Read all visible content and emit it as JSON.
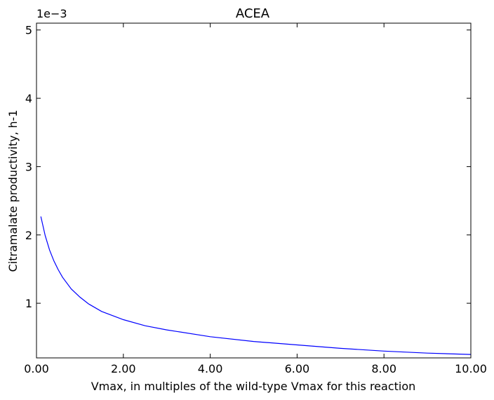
{
  "chart_data": {
    "type": "line",
    "title": "ACEA",
    "xlabel": "Vmax, in multiples of the wild-type Vmax for this reaction",
    "ylabel": "Citramalate productivity, h-1",
    "offset_label": "1e−3",
    "xlim": [
      0.0,
      10.0
    ],
    "ylim": [
      0.2,
      5.1
    ],
    "x_ticks": [
      0.0,
      2.0,
      4.0,
      6.0,
      8.0,
      10.0
    ],
    "x_tick_labels": [
      "0.00",
      "2.00",
      "4.00",
      "6.00",
      "8.00",
      "10.00"
    ],
    "y_ticks": [
      1,
      2,
      3,
      4,
      5
    ],
    "y_tick_labels": [
      "1",
      "2",
      "3",
      "4",
      "5"
    ],
    "y_scale_factor": 0.001,
    "grid": false,
    "series": [
      {
        "color": "#0000ff",
        "x": [
          0.1,
          0.2,
          0.3,
          0.4,
          0.5,
          0.6,
          0.8,
          1.0,
          1.2,
          1.5,
          2.0,
          2.5,
          3.0,
          4.0,
          5.0,
          6.0,
          7.0,
          8.0,
          9.0,
          10.0
        ],
        "y": [
          2.27,
          1.99,
          1.78,
          1.62,
          1.49,
          1.38,
          1.21,
          1.09,
          0.99,
          0.88,
          0.76,
          0.67,
          0.61,
          0.51,
          0.44,
          0.39,
          0.34,
          0.3,
          0.27,
          0.25
        ]
      }
    ]
  }
}
